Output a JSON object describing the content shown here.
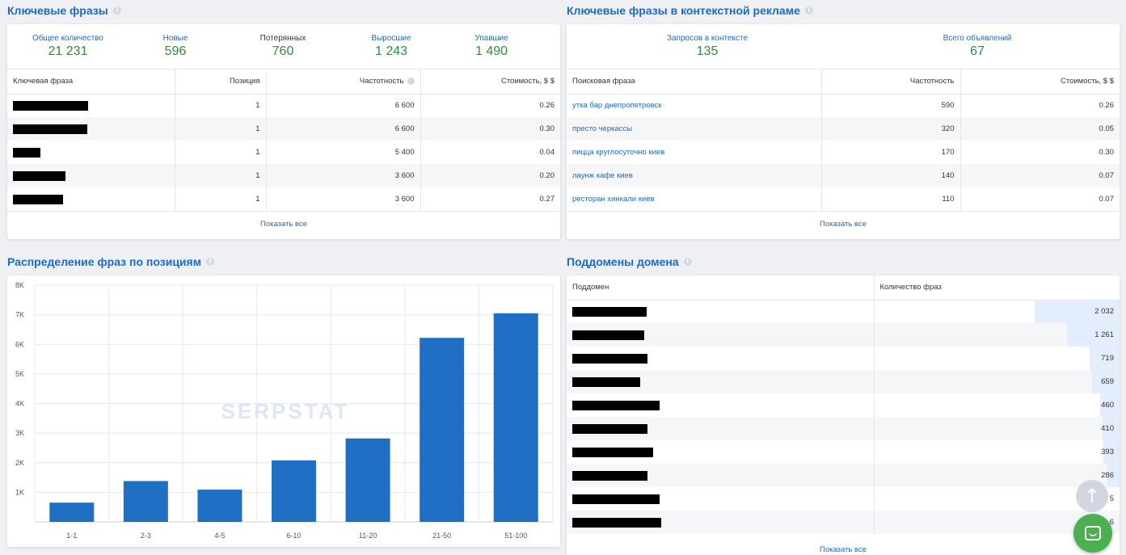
{
  "keywords": {
    "title": "Ключевые фразы",
    "stats": [
      {
        "label": "Общее количество",
        "value": "21 231"
      },
      {
        "label": "Новые",
        "value": "596"
      },
      {
        "label": "Потерянных",
        "value": "760"
      },
      {
        "label": "Выросшие",
        "value": "1 243"
      },
      {
        "label": "Упавшие",
        "value": "1 490"
      }
    ],
    "columns": [
      "Ключевая фраза",
      "Позиция",
      "Частотность",
      "Стоимость, $ $"
    ],
    "rows": [
      {
        "position": "1",
        "frequency": "6 600",
        "cost": "0.26"
      },
      {
        "position": "1",
        "frequency": "6 600",
        "cost": "0.30"
      },
      {
        "position": "1",
        "frequency": "5 400",
        "cost": "0.04"
      },
      {
        "position": "1",
        "frequency": "3 600",
        "cost": "0.20"
      },
      {
        "position": "1",
        "frequency": "3 600",
        "cost": "0.27"
      }
    ],
    "show_all": "Показать все"
  },
  "ads": {
    "title": "Ключевые фразы в контекстной рекламе",
    "stats": [
      {
        "label": "Запросов в контексте",
        "value": "135"
      },
      {
        "label": "Всего объявлений",
        "value": "67"
      }
    ],
    "columns": [
      "Поисковая фраза",
      "Частотность",
      "Стоимость, $ $"
    ],
    "rows": [
      {
        "phrase": "утка бар днепропетровск",
        "frequency": "590",
        "cost": "0.26"
      },
      {
        "phrase": "престо черкассы",
        "frequency": "320",
        "cost": "0.05"
      },
      {
        "phrase": "пицца круглосуточно киев",
        "frequency": "170",
        "cost": "0.30"
      },
      {
        "phrase": "лаунж кафе киев",
        "frequency": "140",
        "cost": "0.07"
      },
      {
        "phrase": "ресторан хинкали киев",
        "frequency": "110",
        "cost": "0.07"
      }
    ],
    "show_all": "Показать все"
  },
  "distribution": {
    "title": "Распределение фраз по позициям",
    "watermark": "SERPSTAT"
  },
  "chart_data": {
    "type": "bar",
    "categories": [
      "1-1",
      "2-3",
      "4-5",
      "6-10",
      "11-20",
      "21-50",
      "51-100"
    ],
    "values": [
      650,
      1380,
      1090,
      2080,
      2820,
      6220,
      7050
    ],
    "yticks": [
      "1K",
      "2K",
      "3K",
      "4K",
      "5K",
      "6K",
      "7K",
      "8K"
    ],
    "ylim": [
      0,
      8000
    ],
    "grid": true,
    "bar_color": "#1f6fc5"
  },
  "subdomains": {
    "title": "Поддомены домена",
    "columns": [
      "Поддомен",
      "Количество фраз"
    ],
    "rows": [
      {
        "count": "2 032",
        "share": 0.345
      },
      {
        "count": "1 261",
        "share": 0.214
      },
      {
        "count": "719",
        "share": 0.122
      },
      {
        "count": "659",
        "share": 0.112
      },
      {
        "count": "460",
        "share": 0.078
      },
      {
        "count": "410",
        "share": 0.07
      },
      {
        "count": "393",
        "share": 0.067
      },
      {
        "count": "286",
        "share": 0.049
      },
      {
        "count": "5",
        "share": 0.0
      },
      {
        "count": "6",
        "share": 0.0
      }
    ],
    "show_all": "Показать все"
  },
  "colors": {
    "accent": "#1b6ac9",
    "positive": "#2e8b3c",
    "chat": "#4caf50"
  }
}
